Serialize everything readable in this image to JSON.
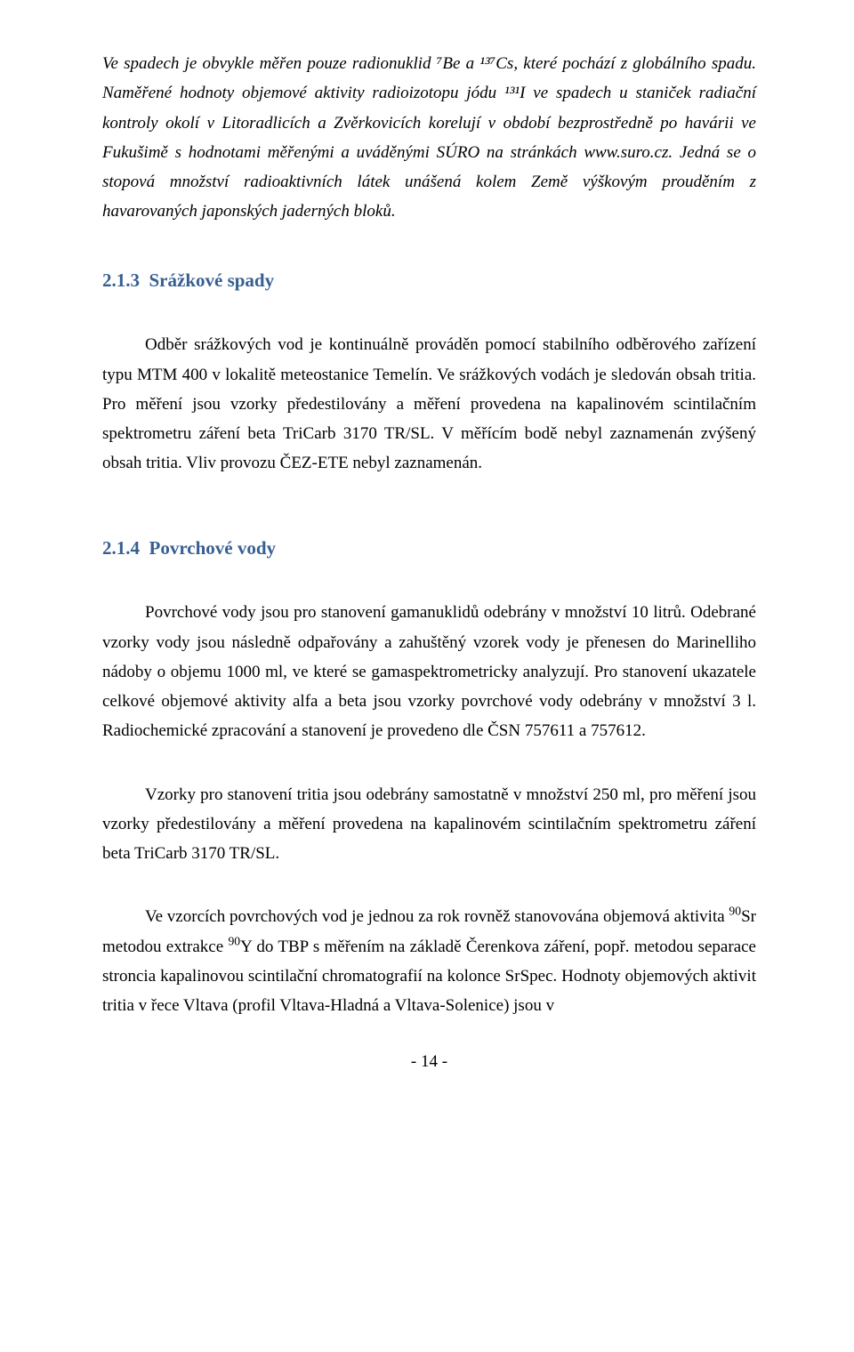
{
  "para_italic": "Ve spadech je obvykle měřen pouze radionuklid ⁷Be a ¹³⁷Cs, které pochází z globálního spadu. Naměřené hodnoty objemové aktivity radioizotopu jódu ¹³¹I ve spadech u staniček radiační kontroly okolí v Litoradlicích a Zvěrkovicích korelují v období bezprostředně po havárii ve Fukušimě s hodnotami měřenými a uváděnými SÚRO na stránkách www.suro.cz. Jedná se o stopová množství radioaktivních látek unášená kolem Země výškovým prouděním z havarovaných japonských jaderných bloků.",
  "heading_213_num": "2.1.3",
  "heading_213_title": "Srážkové spady",
  "para_213": "Odběr srážkových vod je kontinuálně prováděn pomocí stabilního odběrového zařízení typu MTM 400 v lokalitě meteostanice Temelín. Ve srážkových vodách je sledován obsah tritia. Pro měření jsou vzorky předestilovány a měření provedena na kapalinovém scintilačním spektrometru záření beta TriCarb 3170 TR/SL. V měřícím bodě nebyl zaznamenán zvýšený obsah tritia. Vliv provozu ČEZ-ETE nebyl zaznamenán.",
  "heading_214_num": "2.1.4",
  "heading_214_title": "Povrchové vody",
  "para_214_1": "Povrchové vody jsou pro stanovení gamanuklidů odebrány v množství 10 litrů. Odebrané vzorky vody jsou následně odpařovány a zahuštěný vzorek vody je přenesen do Marinelliho nádoby o objemu 1000 ml, ve které se gamaspektrometricky analyzují. Pro stanovení ukazatele celkové objemové aktivity alfa a beta jsou vzorky povrchové vody odebrány v množství 3 l. Radiochemické zpracování a stanovení je provedeno dle ČSN 757611 a 757612.",
  "para_214_2": "Vzorky pro stanovení tritia jsou odebrány samostatně v množství 250 ml, pro měření jsou vzorky předestilovány a měření provedena na kapalinovém scintilačním spektrometru záření beta TriCarb 3170 TR/SL.",
  "para_214_3_pre": "Ve vzorcích povrchových vod je jednou za rok rovněž stanovována objemová aktivita ",
  "para_214_3_sup1": "90",
  "para_214_3_mid1": "Sr metodou extrakce ",
  "para_214_3_sup2": "90",
  "para_214_3_mid2": "Y do TBP s měřením na základě Čerenkova záření, popř. metodou separace stroncia kapalinovou scintilační chromatografií na kolonce SrSpec. Hodnoty objemových aktivit tritia v řece Vltava (profil Vltava-Hladná a Vltava-Solenice) jsou v",
  "page_number": "- 14 -",
  "colors": {
    "heading": "#365f91",
    "text": "#000000",
    "background": "#ffffff"
  }
}
